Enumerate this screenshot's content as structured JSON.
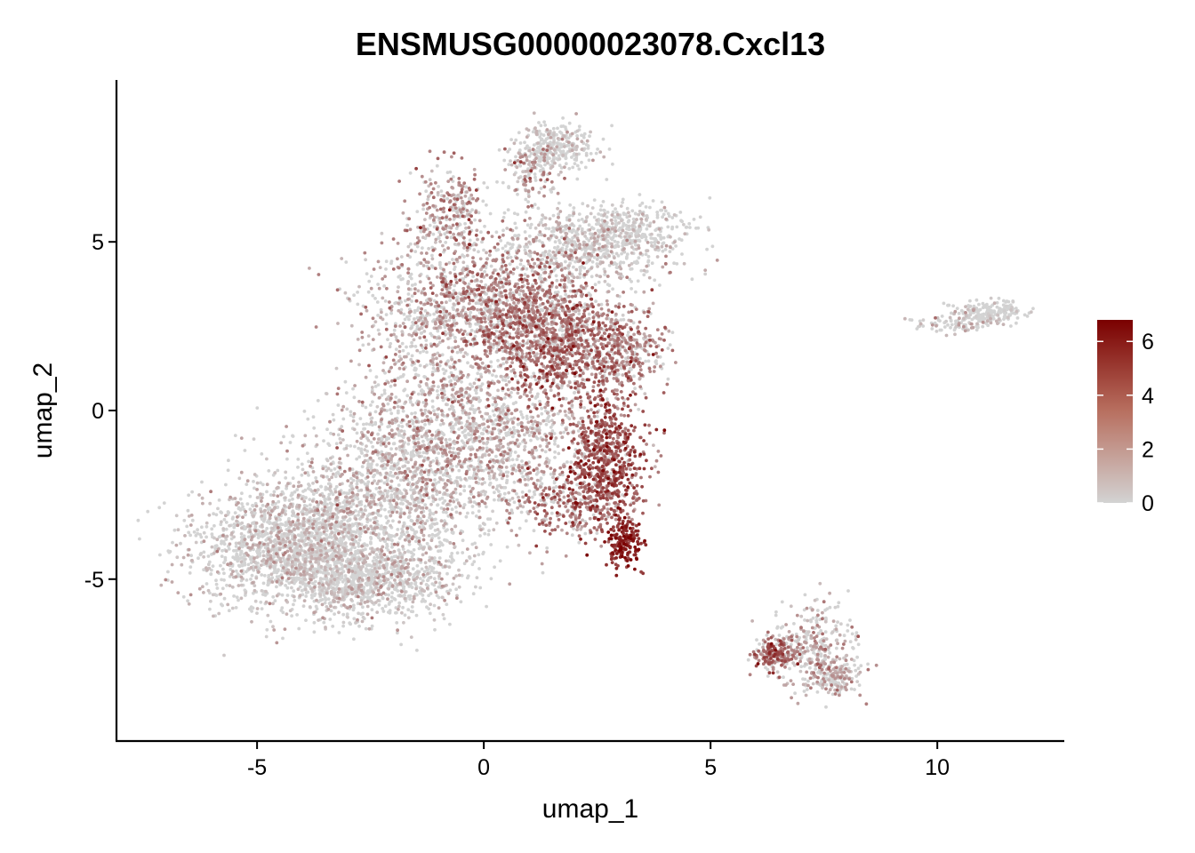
{
  "chart_data": {
    "type": "scatter",
    "title": "ENSMUSG00000023078.Cxcl13",
    "xlabel": "umap_1",
    "ylabel": "umap_2",
    "xlim": [
      -8.1,
      12.8
    ],
    "ylim": [
      -9.8,
      9.8
    ],
    "x_ticks": [
      -5,
      0,
      5,
      10
    ],
    "y_ticks": [
      -5,
      0,
      5
    ],
    "x_tick_labels": [
      "-5",
      "0",
      "5",
      "10"
    ],
    "y_tick_labels": [
      "-5",
      "0",
      "5"
    ],
    "color_scale": {
      "low_color": "#d3d3d3",
      "high_color": "#7a0000",
      "min": 0,
      "max": 6.8,
      "ticks": [
        0,
        2,
        4,
        6
      ],
      "tick_labels": [
        "0",
        "2",
        "4",
        "6"
      ]
    },
    "clusters": [
      {
        "label": "main-body",
        "x_range": [
          -6.5,
          4.1
        ],
        "y_range": [
          -6.6,
          7.2
        ],
        "expression": "mixed"
      },
      {
        "label": "top-arm",
        "x_range": [
          0.6,
          2.6
        ],
        "y_range": [
          6.0,
          8.6
        ],
        "expression": "low"
      },
      {
        "label": "right-arm",
        "x_range": [
          2.0,
          4.2
        ],
        "y_range": [
          4.0,
          6.3
        ],
        "expression": "low"
      },
      {
        "label": "high-tail",
        "x_range": [
          2.2,
          3.6
        ],
        "y_range": [
          -4.5,
          1.0
        ],
        "expression": "high"
      },
      {
        "label": "right-cluster",
        "x_range": [
          9.4,
          11.8
        ],
        "y_range": [
          2.2,
          3.3
        ],
        "expression": "low"
      },
      {
        "label": "bottom-right-cluster",
        "x_range": [
          6.0,
          8.1
        ],
        "y_range": [
          -8.4,
          -5.1
        ],
        "expression": "medium"
      }
    ]
  }
}
